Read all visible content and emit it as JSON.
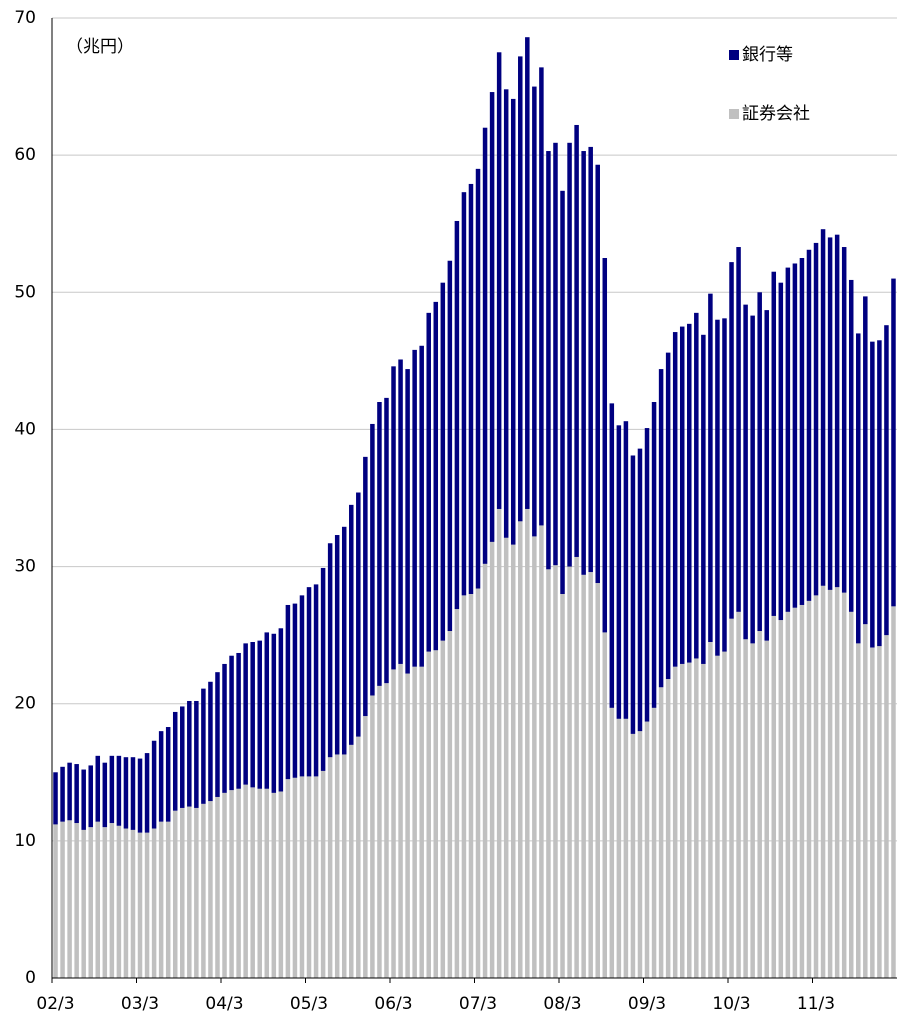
{
  "chart_data": {
    "type": "stacked_bar",
    "unit_label": "（兆円）",
    "categories": [
      "02/3",
      null,
      null,
      null,
      null,
      null,
      null,
      null,
      null,
      null,
      null,
      null,
      "03/3",
      null,
      null,
      null,
      null,
      null,
      null,
      null,
      null,
      null,
      null,
      null,
      "04/3",
      null,
      null,
      null,
      null,
      null,
      null,
      null,
      null,
      null,
      null,
      null,
      "05/3",
      null,
      null,
      null,
      null,
      null,
      null,
      null,
      null,
      null,
      null,
      null,
      "06/3",
      null,
      null,
      null,
      null,
      null,
      null,
      null,
      null,
      null,
      null,
      null,
      "07/3",
      null,
      null,
      null,
      null,
      null,
      null,
      null,
      null,
      null,
      null,
      null,
      "08/3",
      null,
      null,
      null,
      null,
      null,
      null,
      null,
      null,
      null,
      null,
      null,
      "09/3",
      null,
      null,
      null,
      null,
      null,
      null,
      null,
      null,
      null,
      null,
      null,
      "10/3",
      null,
      null,
      null,
      null,
      null,
      null,
      null,
      null,
      null,
      null,
      null,
      "11/3",
      null,
      null,
      null,
      null,
      null,
      null,
      null,
      null,
      null,
      null,
      null
    ],
    "series": [
      {
        "name": "証券会社",
        "color": "#c0c0c0",
        "values": [
          11.2,
          11.4,
          11.5,
          11.3,
          10.8,
          11.0,
          11.4,
          11.0,
          11.3,
          11.1,
          10.9,
          10.8,
          10.6,
          10.6,
          10.9,
          11.4,
          11.4,
          12.2,
          12.4,
          12.5,
          12.4,
          12.7,
          12.9,
          13.2,
          13.5,
          13.7,
          13.8,
          14.1,
          13.9,
          13.8,
          13.8,
          13.5,
          13.6,
          14.5,
          14.6,
          14.7,
          14.7,
          14.7,
          15.1,
          16.1,
          16.3,
          16.3,
          17.0,
          17.6,
          19.1,
          20.6,
          21.3,
          21.5,
          22.5,
          22.9,
          22.2,
          22.7,
          22.7,
          23.8,
          23.9,
          24.6,
          25.3,
          26.9,
          27.9,
          28.0,
          28.4,
          30.2,
          31.8,
          34.2,
          32.1,
          31.6,
          33.3,
          34.2,
          32.2,
          33.0,
          29.8,
          30.1,
          28.0,
          30.0,
          30.7,
          29.4,
          29.6,
          28.8,
          25.2,
          19.7,
          18.9,
          18.9,
          17.8,
          18.0,
          18.7,
          19.7,
          21.2,
          21.8,
          22.7,
          22.9,
          23.0,
          23.3,
          22.9,
          24.5,
          23.5,
          23.8,
          26.2,
          26.7,
          24.7,
          24.4,
          25.3,
          24.6,
          26.4,
          26.1,
          26.7,
          27.0,
          27.2,
          27.5,
          27.9,
          28.6,
          28.3,
          28.5,
          28.1,
          26.7,
          24.4,
          25.8,
          24.1,
          24.2,
          25.0,
          27.1
        ]
      },
      {
        "name": "銀行等",
        "color": "#000080",
        "values": [
          3.8,
          4.0,
          4.2,
          4.3,
          4.4,
          4.5,
          4.8,
          4.7,
          4.9,
          5.1,
          5.2,
          5.3,
          5.4,
          5.8,
          6.4,
          6.6,
          6.9,
          7.2,
          7.4,
          7.7,
          7.8,
          8.4,
          8.7,
          9.1,
          9.4,
          9.8,
          9.9,
          10.3,
          10.6,
          10.8,
          11.4,
          11.6,
          11.9,
          12.7,
          12.7,
          13.2,
          13.8,
          14.0,
          14.8,
          15.6,
          16.0,
          16.6,
          17.5,
          17.8,
          18.9,
          19.8,
          20.7,
          20.8,
          22.1,
          22.2,
          22.2,
          23.1,
          23.4,
          24.7,
          25.4,
          26.1,
          27.0,
          28.3,
          29.4,
          29.9,
          30.6,
          31.8,
          32.8,
          33.3,
          32.7,
          32.5,
          33.9,
          34.4,
          32.8,
          33.4,
          30.5,
          30.8,
          29.4,
          30.9,
          31.5,
          30.9,
          31.0,
          30.5,
          27.3,
          22.2,
          21.4,
          21.7,
          20.3,
          20.6,
          21.4,
          22.3,
          23.2,
          23.8,
          24.4,
          24.6,
          24.7,
          25.2,
          24.0,
          25.4,
          24.5,
          24.3,
          26.0,
          26.6,
          24.4,
          23.9,
          24.7,
          24.1,
          25.1,
          24.6,
          25.1,
          25.1,
          25.3,
          25.6,
          25.7,
          26.0,
          25.7,
          25.7,
          25.2,
          24.2,
          22.6,
          23.9,
          22.3,
          22.3,
          22.6,
          23.9
        ]
      }
    ],
    "ylim": [
      0,
      70
    ],
    "yticks": [
      0,
      10,
      20,
      30,
      40,
      50,
      60,
      70
    ],
    "grid": true
  }
}
